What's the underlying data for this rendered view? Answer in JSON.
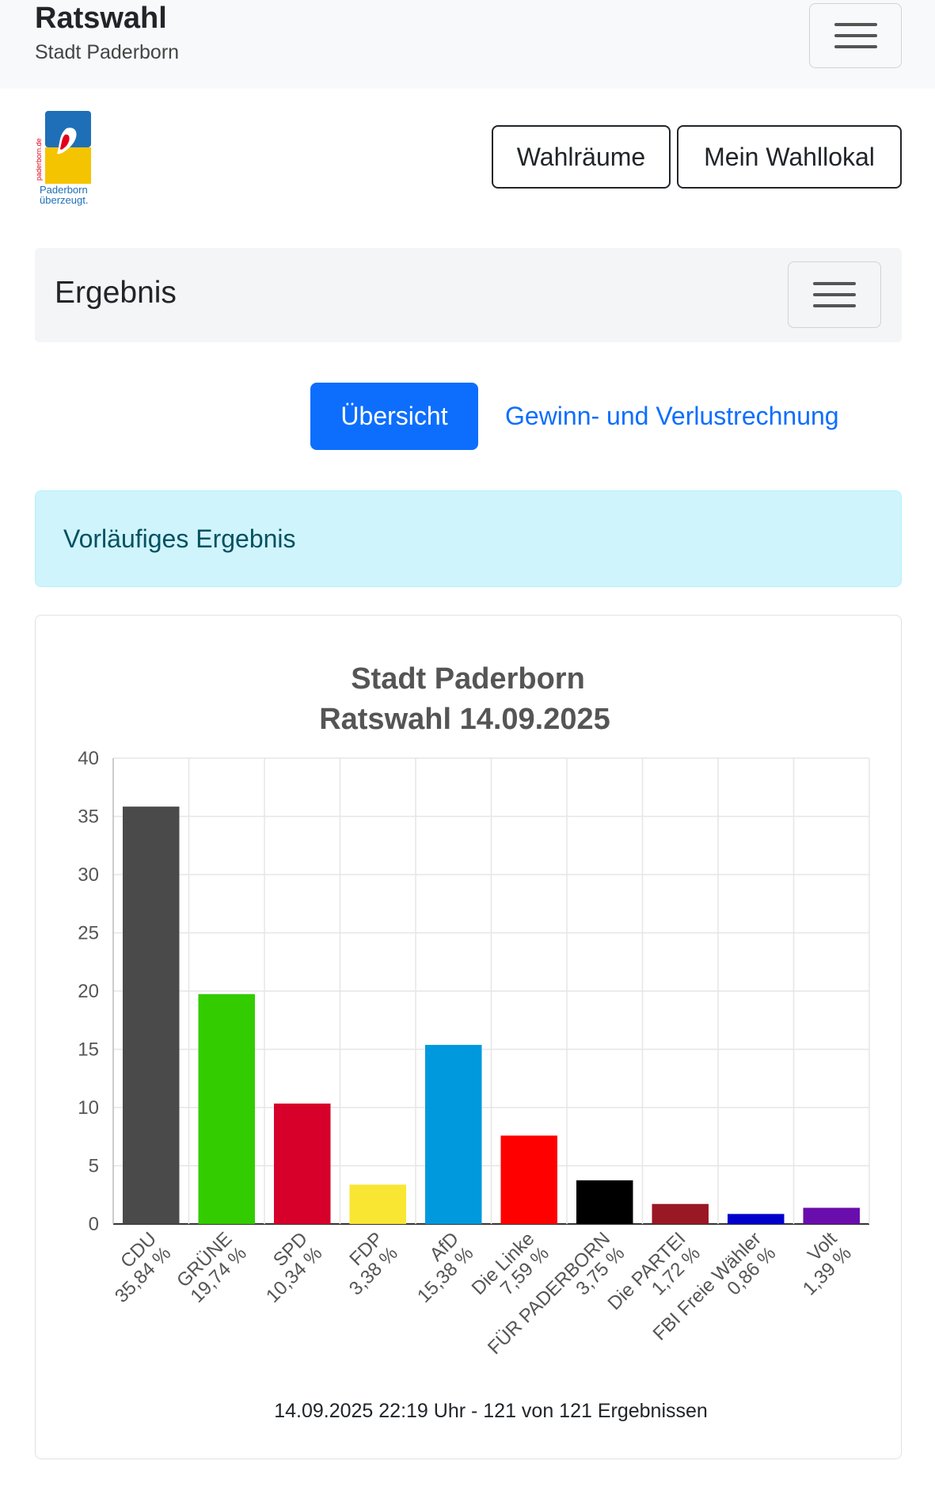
{
  "header": {
    "title": "Ratswahl",
    "subtitle": "Stadt Paderborn"
  },
  "logo": {
    "side_text": "paderborn.de",
    "caption_line1": "Paderborn",
    "caption_line2": "überzeugt."
  },
  "buttons": {
    "wahlraeume": "Wahlräume",
    "wahllokal": "Mein Wahllokal"
  },
  "subnav": {
    "title": "Ergebnis"
  },
  "tabs": {
    "active": "Übersicht",
    "other": "Gewinn- und Verlustrechnung"
  },
  "alert": {
    "text": "Vorläufiges Ergebnis"
  },
  "colors": {
    "primary": "#0d6efd",
    "alert_bg": "#cff4fc",
    "alert_text": "#055160"
  },
  "chart_data": {
    "type": "bar",
    "title": [
      "Stadt Paderborn",
      "Ratswahl 14.09.2025"
    ],
    "categories": [
      "CDU",
      "GRÜNE",
      "SPD",
      "FDP",
      "AfD",
      "Die Linke",
      "FÜR PADERBORN",
      "Die PARTEI",
      "FBI Freie Wähler",
      "Volt"
    ],
    "value_labels": [
      "35,84 %",
      "19,74 %",
      "10,34 %",
      "3,38 %",
      "15,38 %",
      "7,59 %",
      "3,75 %",
      "1,72 %",
      "0,86 %",
      "1,39 %"
    ],
    "values": [
      35.84,
      19.74,
      10.34,
      3.38,
      15.38,
      7.59,
      3.75,
      1.72,
      0.86,
      1.39
    ],
    "bar_colors": [
      "#4a4a4a",
      "#33cc00",
      "#d6002a",
      "#f9e633",
      "#0099dd",
      "#ff0000",
      "#000000",
      "#9a1724",
      "#0000cc",
      "#6a0dad"
    ],
    "yticks": [
      0,
      5,
      10,
      15,
      20,
      25,
      30,
      35,
      40
    ],
    "ylim": [
      0,
      40
    ],
    "grid": true,
    "footnote": "14.09.2025 22:19 Uhr - 121 von 121 Ergebnissen"
  }
}
